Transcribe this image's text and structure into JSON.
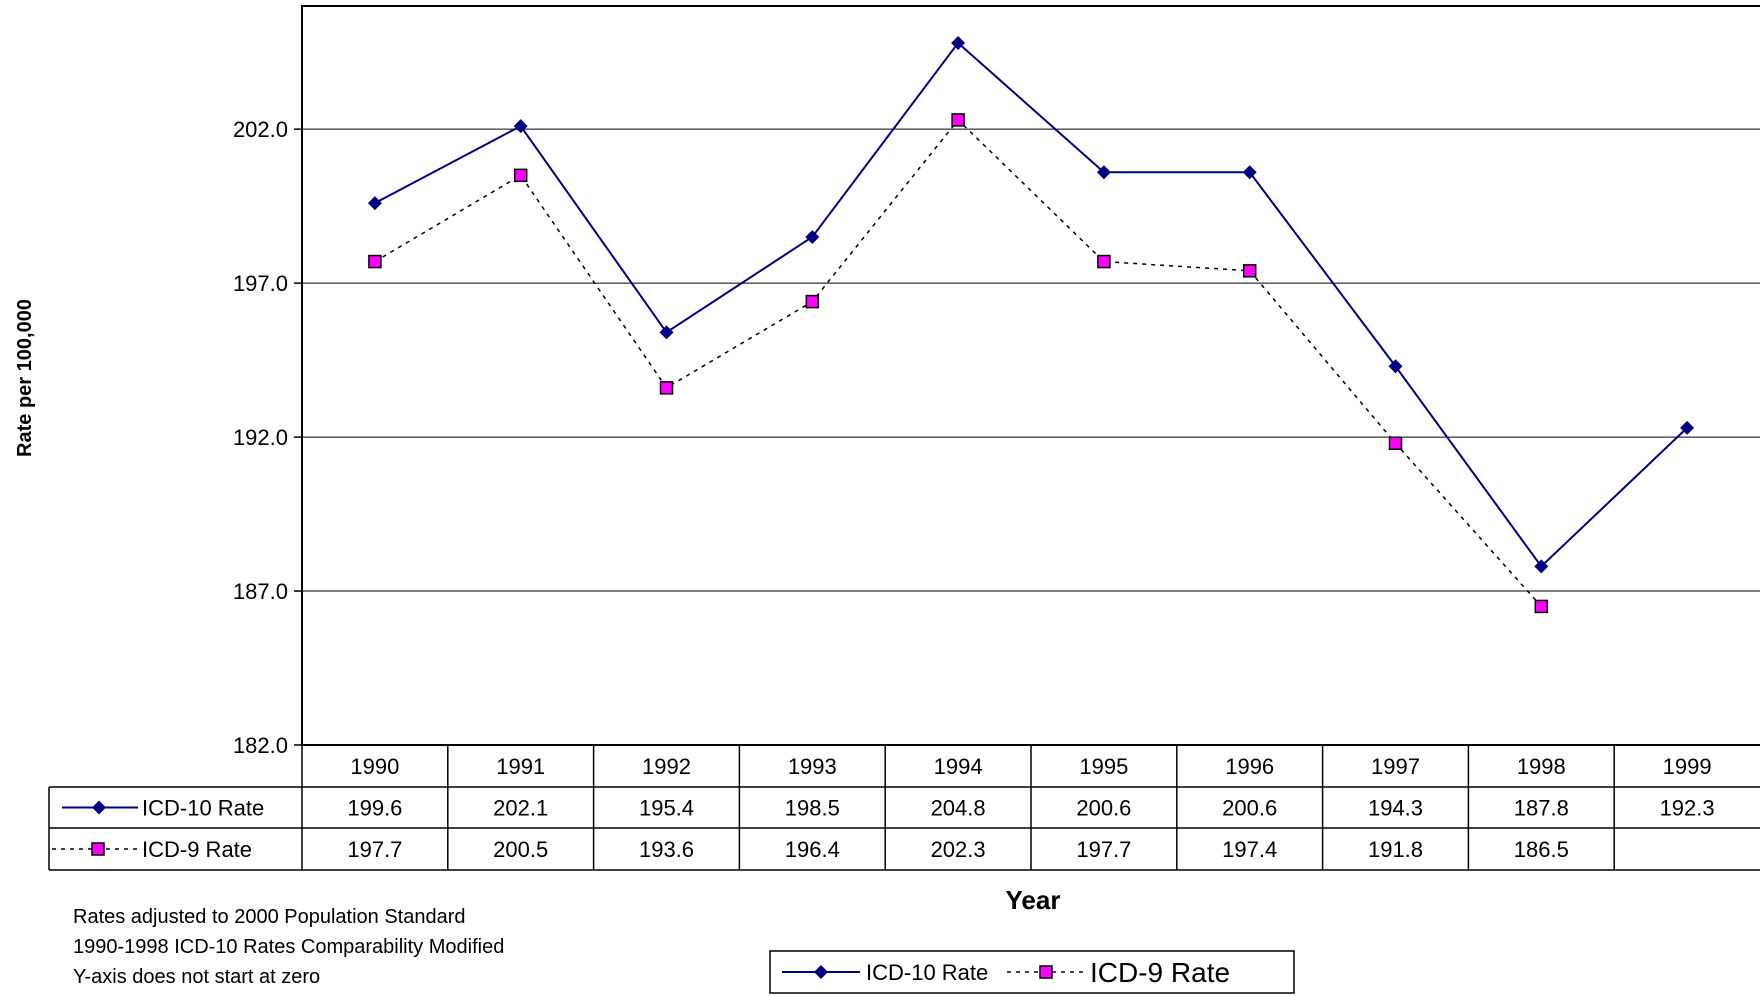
{
  "chart_data": {
    "type": "line",
    "categories": [
      "1990",
      "1991",
      "1992",
      "1993",
      "1994",
      "1995",
      "1996",
      "1997",
      "1998",
      "1999"
    ],
    "series": [
      {
        "name": "ICD-10 Rate",
        "values": [
          199.6,
          202.1,
          195.4,
          198.5,
          204.8,
          200.6,
          200.6,
          194.3,
          187.8,
          192.3
        ],
        "labels": [
          "199.6",
          "202.1",
          "195.4",
          "198.5",
          "204.8",
          "200.6",
          "200.6",
          "194.3",
          "187.8",
          "192.3"
        ],
        "color": "#000080",
        "line_style": "solid",
        "marker": "diamond"
      },
      {
        "name": "ICD-9 Rate",
        "values": [
          197.7,
          200.5,
          193.6,
          196.4,
          202.3,
          197.7,
          197.4,
          191.8,
          186.5,
          null
        ],
        "labels": [
          "197.7",
          "200.5",
          "193.6",
          "196.4",
          "202.3",
          "197.7",
          "197.4",
          "191.8",
          "186.5",
          ""
        ],
        "color": "#000000",
        "marker_fill": "#ff00ff",
        "line_style": "dotted",
        "marker": "square"
      }
    ],
    "ylabel": "Rate per 100,000",
    "xlabel": "Year",
    "ylim": [
      182.0,
      206.0
    ],
    "yticks": [
      182.0,
      187.0,
      192.0,
      197.0,
      202.0
    ],
    "ytick_labels": [
      "182.0",
      "187.0",
      "192.0",
      "197.0",
      "202.0"
    ],
    "grid": true,
    "legend_position": "bottom-center",
    "data_table": true
  },
  "notes": [
    "Rates adjusted to 2000 Population Standard",
    "1990-1998 ICD-10 Rates Comparability Modified",
    "Y-axis does not start at zero"
  ]
}
